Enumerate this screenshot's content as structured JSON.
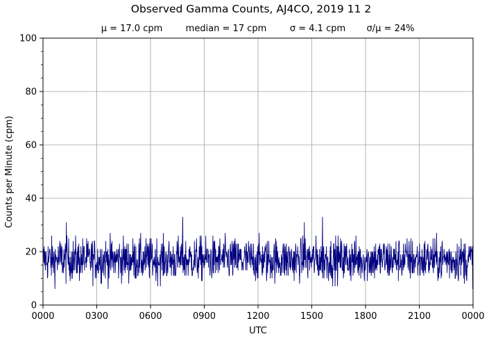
{
  "chart_data": {
    "type": "line",
    "title": "Observed Gamma Counts, AJ4CO, 2019 11 2",
    "subtitle_stats": [
      "μ = 17.0 cpm",
      "median = 17 cpm",
      "σ = 4.1 cpm",
      "σ/μ = 24%"
    ],
    "xlabel": "UTC",
    "ylabel": "Counts per Minute (cpm)",
    "x_tick_labels": [
      "0000",
      "0300",
      "0600",
      "0900",
      "1200",
      "1500",
      "1800",
      "2100",
      "0000"
    ],
    "x_range_minutes": [
      0,
      1440
    ],
    "y_ticks": [
      0,
      20,
      40,
      60,
      80,
      100
    ],
    "ylim": [
      0,
      100
    ],
    "grid": true,
    "line_color": "#000080",
    "series": [
      {
        "description_of_values": "counts per minute, one value per minute of the day",
        "interval_minutes": 1,
        "values": []
      }
    ],
    "notable_peaks": [
      {
        "time": "0118",
        "value": 31
      },
      {
        "time": "0748",
        "value": 33
      },
      {
        "time": "1435",
        "value": 31
      },
      {
        "time": "1536",
        "value": 33
      }
    ],
    "mean": 17.0,
    "median": 17,
    "std": 4.1
  }
}
